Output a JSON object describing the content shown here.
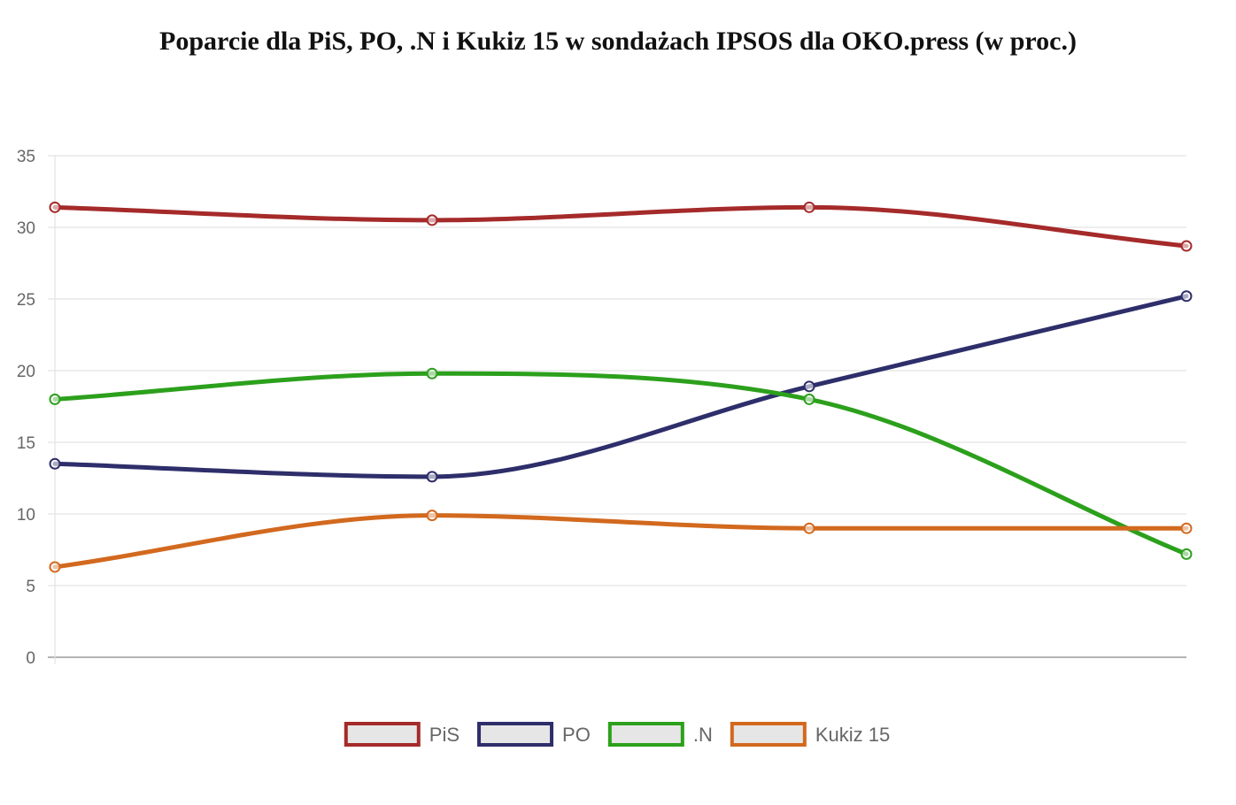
{
  "chart_data": {
    "type": "line",
    "title": "Poparcie dla PiS, PO, .N i Kukiz 15 w sondażach IPSOS dla OKO.press (w proc.)",
    "xlabel": "",
    "ylabel": "",
    "categories": [
      "",
      "",
      "",
      ""
    ],
    "ylim": [
      0,
      35
    ],
    "yticks": [
      0,
      5,
      10,
      15,
      20,
      25,
      30,
      35
    ],
    "grid": true,
    "legend_position": "bottom",
    "curve": "smooth",
    "series": [
      {
        "name": "PiS",
        "color": "#a52a2a",
        "values": [
          31.4,
          30.5,
          31.4,
          28.7
        ]
      },
      {
        "name": "PO",
        "color": "#2e2e6b",
        "values": [
          13.5,
          12.6,
          18.9,
          25.2
        ]
      },
      {
        "name": ".N",
        "color": "#2ca01c",
        "values": [
          18.0,
          19.8,
          18.0,
          7.2
        ]
      },
      {
        "name": "Kukiz 15",
        "color": "#d2691e",
        "values": [
          6.3,
          9.9,
          9.0,
          9.0
        ]
      }
    ]
  }
}
